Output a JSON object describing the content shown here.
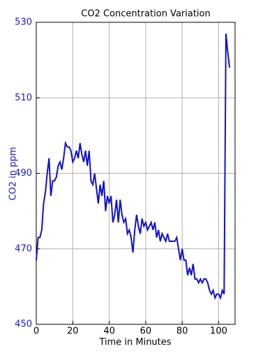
{
  "chart_data": {
    "type": "line",
    "title": "CO2 Concentration Variation",
    "x_label": "Time in Minutes",
    "y_label": "CO2 in ppm",
    "x": [
      0,
      1,
      2,
      3,
      4,
      5,
      6,
      7,
      8,
      9,
      10,
      11,
      12,
      13,
      14,
      15,
      16,
      17,
      18,
      19,
      20,
      21,
      22,
      23,
      24,
      25,
      26,
      27,
      28,
      29,
      30,
      31,
      32,
      33,
      34,
      35,
      36,
      37,
      38,
      39,
      40,
      41,
      42,
      43,
      44,
      45,
      46,
      47,
      48,
      49,
      50,
      51,
      52,
      53,
      54,
      55,
      56,
      57,
      58,
      59,
      60,
      61,
      62,
      63,
      64,
      65,
      66,
      67,
      68,
      69,
      70,
      71,
      72,
      73,
      74,
      75,
      76,
      77,
      78,
      79,
      80,
      81,
      82,
      83,
      84,
      85,
      86,
      87,
      88,
      89,
      90,
      91,
      92,
      93,
      94,
      95,
      96,
      97,
      98,
      99,
      100,
      101,
      102,
      103,
      104,
      105,
      106
    ],
    "series": [
      {
        "name": "CO2",
        "color": "#1010d0",
        "values": [
          467,
          473,
          473,
          475,
          482,
          485,
          490,
          494,
          484,
          488,
          488,
          489,
          492,
          493,
          491,
          494,
          498,
          497,
          497,
          496,
          493,
          494,
          496,
          494,
          498,
          495,
          493,
          496,
          492,
          496,
          488,
          487,
          490,
          486,
          482,
          487,
          484,
          488,
          480,
          484,
          482,
          484,
          477,
          479,
          483,
          477,
          483,
          479,
          477,
          478,
          474,
          475,
          473,
          469,
          475,
          479,
          476,
          474,
          478,
          476,
          477,
          475,
          476,
          477,
          475,
          477,
          473,
          475,
          472,
          474,
          473,
          472,
          474,
          472,
          472,
          472,
          472,
          473,
          470,
          467,
          470,
          467,
          467,
          463,
          465,
          463,
          466,
          462,
          462,
          461,
          462,
          461,
          462,
          462,
          461,
          459,
          458,
          459,
          457,
          458,
          458,
          457,
          459,
          458,
          527,
          522,
          518
        ]
      }
    ],
    "xlim": [
      0,
      109
    ],
    "ylim": [
      450,
      530
    ],
    "xticks": [
      0,
      20,
      40,
      60,
      80,
      100
    ],
    "yticks": [
      450,
      470,
      490,
      510,
      530
    ],
    "grid": true
  }
}
